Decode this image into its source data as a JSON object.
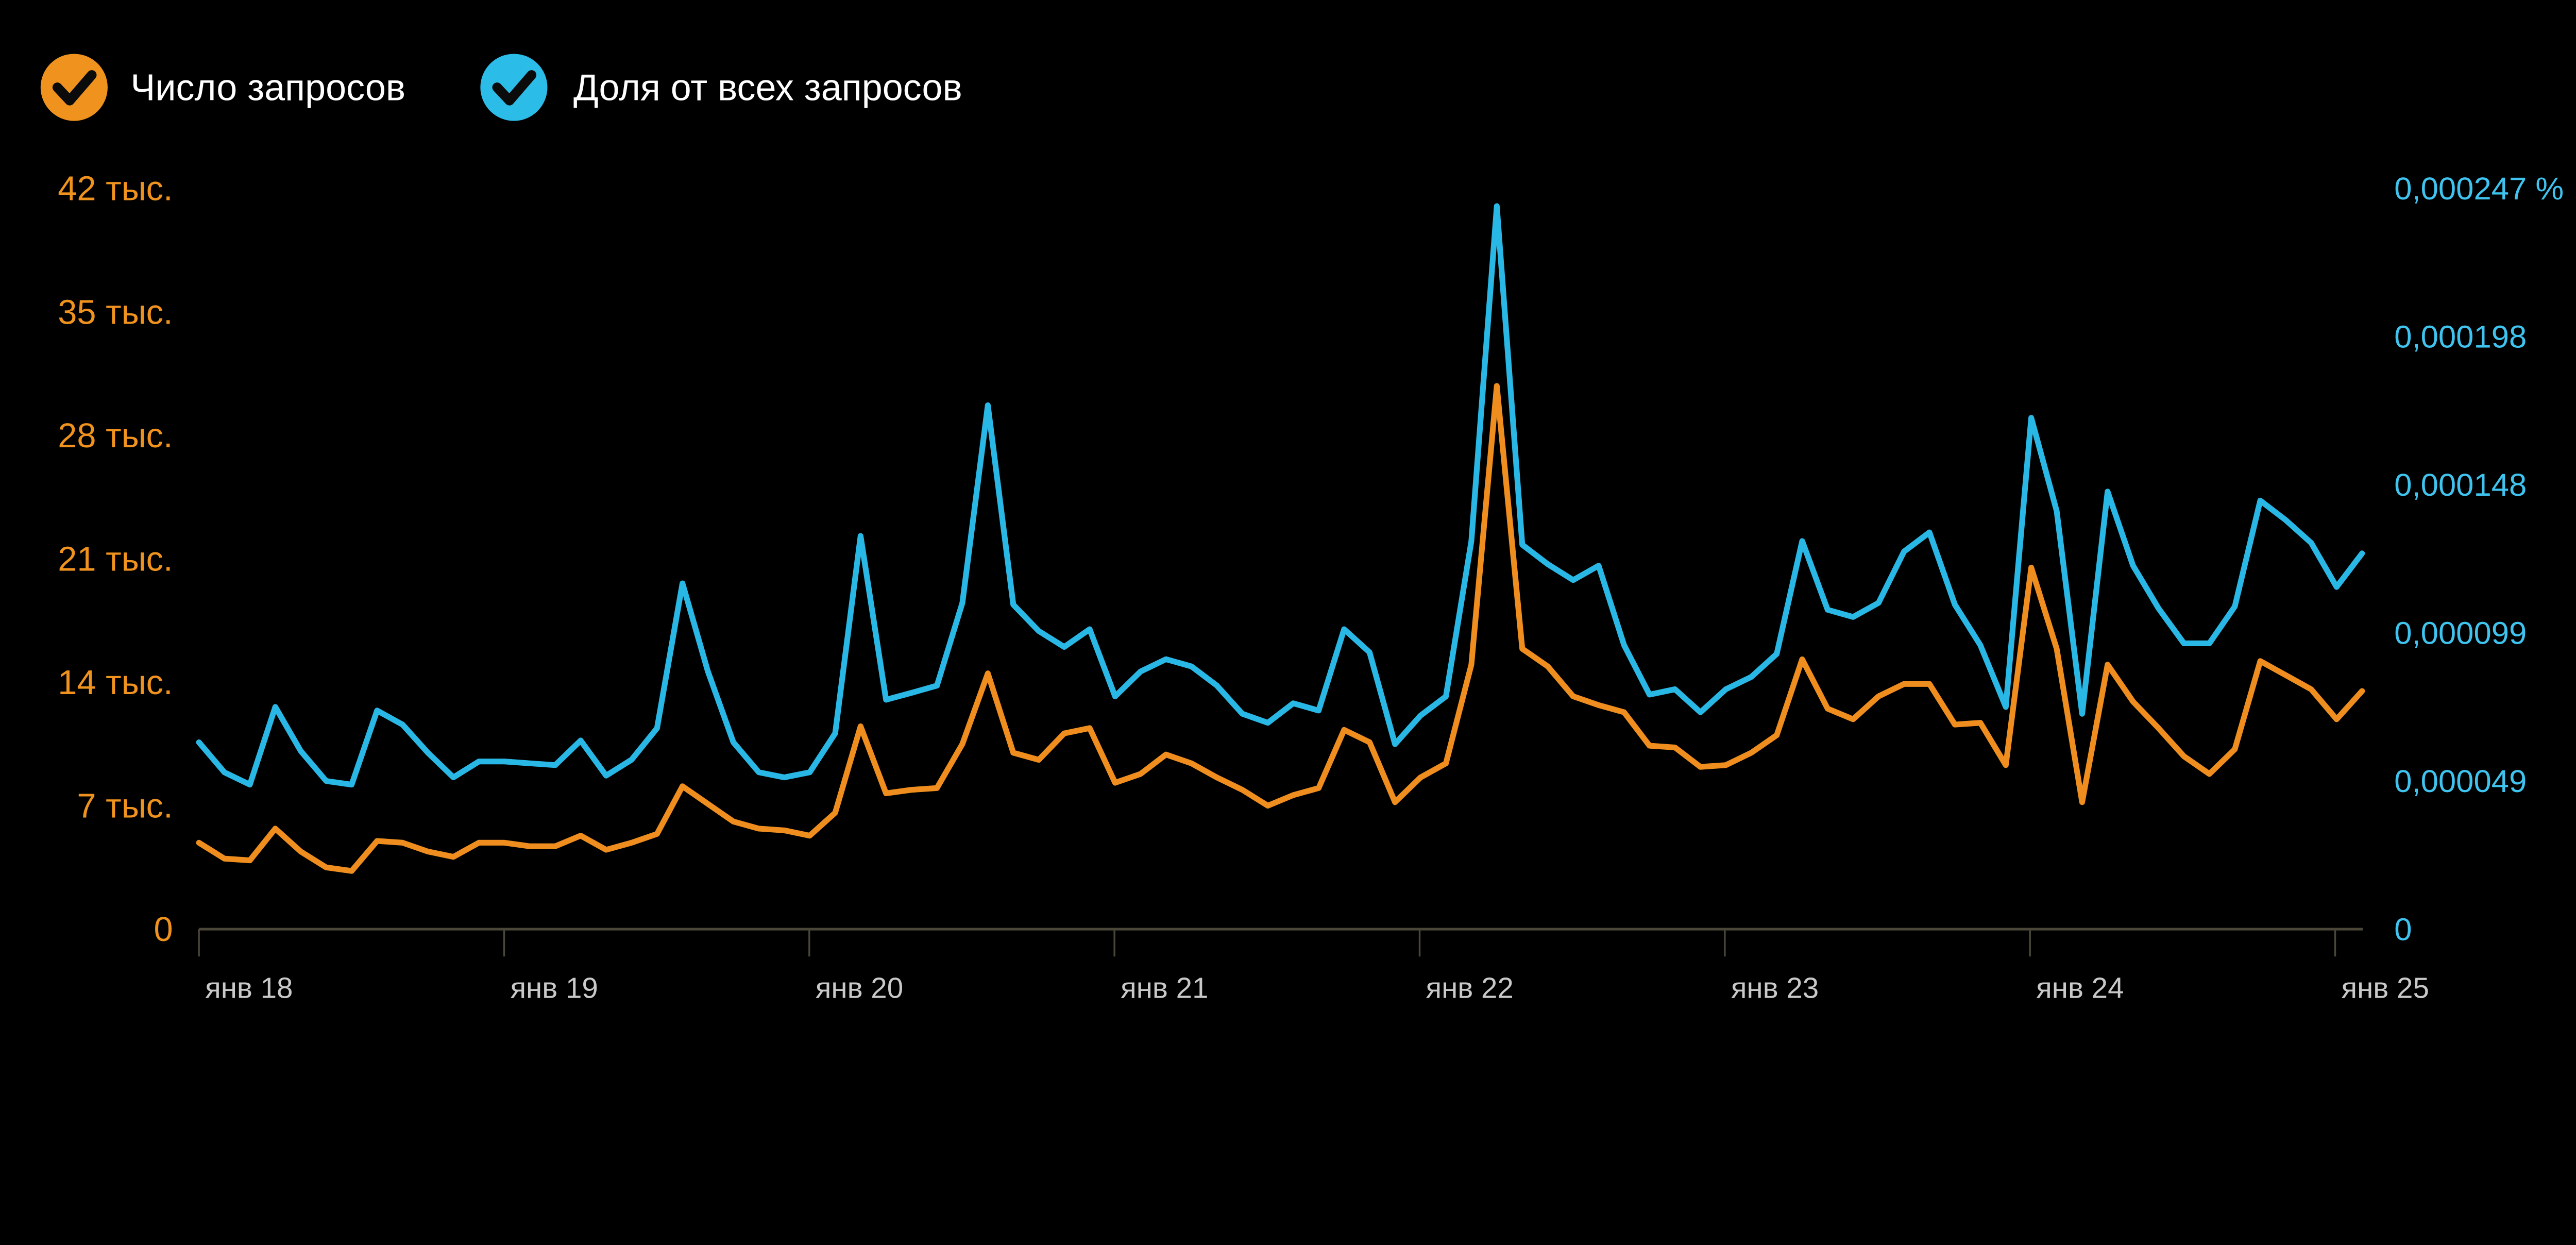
{
  "legend": {
    "series1": "Число запросов",
    "series2": "Доля от всех запросов"
  },
  "colors": {
    "background": "#000000",
    "orange_line": "#ef8e1e",
    "orange_label": "#f0931e",
    "orange_legend_circle": "#f0931e",
    "cyan_line": "#29b8e5",
    "cyan_label": "#3fc4f0",
    "cyan_legend_circle": "#2cbce8",
    "checkmark": "#0b0b0b",
    "axis_line": "#4a4738",
    "x_label": "#c9c9c9",
    "legend_text": "#ffffff"
  },
  "chart_data": {
    "type": "line",
    "title": "",
    "xlabel": "",
    "ylabel_left": "",
    "ylabel_right": "",
    "grid": false,
    "legend_position": "top-left",
    "x_ticks": [
      "янв 18",
      "янв 19",
      "янв 20",
      "янв 21",
      "янв 22",
      "янв 23",
      "янв 24",
      "янв 25"
    ],
    "points_per_day": 12,
    "left_axis": {
      "labels": [
        "42 тыс.",
        "35 тыс.",
        "28 тыс.",
        "21 тыс.",
        "14 тыс.",
        "7 тыс.",
        "0"
      ],
      "min": 0,
      "max": 42000
    },
    "right_axis": {
      "labels": [
        "0,000247 %",
        "0,000198",
        "0,000148",
        "0,000099",
        "0,000049",
        "0"
      ],
      "min": 0,
      "max": 0.000247
    },
    "series": [
      {
        "name": "Число запросов",
        "axis": "left",
        "values": [
          4900,
          4000,
          3900,
          5700,
          4400,
          3500,
          3300,
          5000,
          4900,
          4400,
          4100,
          4900,
          4900,
          4700,
          4700,
          5300,
          4500,
          4900,
          5400,
          8100,
          7100,
          6100,
          5700,
          5600,
          5300,
          6600,
          11500,
          7700,
          7900,
          8000,
          10500,
          14500,
          10000,
          9600,
          11100,
          11400,
          8300,
          8800,
          9900,
          9400,
          8600,
          7900,
          7000,
          7600,
          8000,
          11300,
          10600,
          7200,
          8600,
          9400,
          15000,
          30800,
          15900,
          14900,
          13200,
          12700,
          12300,
          10400,
          10300,
          9200,
          9300,
          10000,
          11000,
          15300,
          12500,
          11900,
          13200,
          13900,
          13900,
          11600,
          11700,
          9300,
          20500,
          15900,
          7200,
          15000,
          12900,
          11400,
          9800,
          8800,
          10200,
          15200,
          14400,
          13600,
          11900,
          13500
        ]
      },
      {
        "name": "Доля от всех запросов",
        "axis": "right",
        "values": [
          6.23e-05,
          5.23e-05,
          4.82e-05,
          7.41e-05,
          5.94e-05,
          4.94e-05,
          4.82e-05,
          7.29e-05,
          6.82e-05,
          5.88e-05,
          5.06e-05,
          5.59e-05,
          5.59e-05,
          5.53e-05,
          5.47e-05,
          6.29e-05,
          5.12e-05,
          5.65e-05,
          6.7e-05,
          0.0001153,
          8.59e-05,
          6.23e-05,
          5.23e-05,
          5.06e-05,
          5.23e-05,
          6.53e-05,
          0.0001311,
          7.65e-05,
          7.88e-05,
          8.12e-05,
          0.0001088,
          0.0001747,
          0.0001082,
          9.94e-05,
          9.41e-05,
          0.0001,
          7.76e-05,
          8.59e-05,
          9e-05,
          8.76e-05,
          8.12e-05,
          7.18e-05,
          6.88e-05,
          7.53e-05,
          7.29e-05,
          0.0001,
          9.23e-05,
          6.17e-05,
          7.12e-05,
          7.76e-05,
          0.0001294,
          0.0002411,
          0.0001282,
          0.0001217,
          0.0001164,
          0.0001212,
          9.47e-05,
          7.82e-05,
          8e-05,
          7.23e-05,
          8e-05,
          8.41e-05,
          9.18e-05,
          0.0001294,
          0.0001065,
          0.0001041,
          0.0001088,
          0.0001259,
          0.0001323,
          0.0001082,
          9.47e-05,
          7.41e-05,
          0.0001705,
          0.0001394,
          7.18e-05,
          0.0001459,
          0.0001212,
          0.000107,
          9.53e-05,
          9.53e-05,
          0.0001076,
          0.0001429,
          0.0001364,
          0.0001288,
          0.0001141,
          0.0001253
        ]
      }
    ]
  }
}
